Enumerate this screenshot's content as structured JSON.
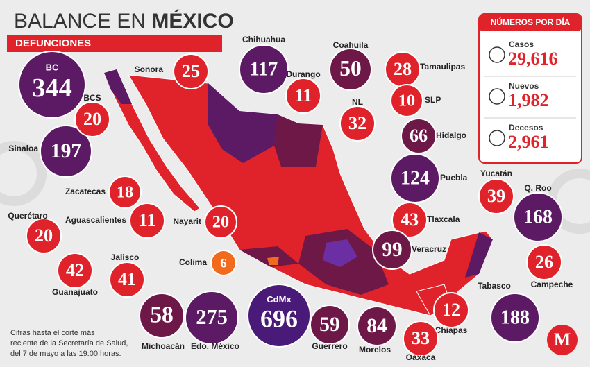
{
  "header": {
    "title_prefix": "BALANCE EN",
    "title_emphasis": "MÉXICO",
    "subtitle": "DEFUNCIONES"
  },
  "states": [
    {
      "name": "BC",
      "value": "344",
      "color": "#5b1a63"
    },
    {
      "name": "Sonora",
      "value": "25",
      "color": "#e0232b"
    },
    {
      "name": "Chihuahua",
      "value": "117",
      "color": "#5b1a63"
    },
    {
      "name": "Durango",
      "value": "11",
      "color": "#e0232b"
    },
    {
      "name": "Coahuila",
      "value": "50",
      "color": "#6e1848"
    },
    {
      "name": "Tamaulipas",
      "value": "28",
      "color": "#e0232b"
    },
    {
      "name": "NL",
      "value": "32",
      "color": "#e0232b"
    },
    {
      "name": "SLP",
      "value": "10",
      "color": "#e0232b"
    },
    {
      "name": "Hidalgo",
      "value": "66",
      "color": "#6e1848"
    },
    {
      "name": "Puebla",
      "value": "124",
      "color": "#5b1a63"
    },
    {
      "name": "Tlaxcala",
      "value": "43",
      "color": "#e0232b"
    },
    {
      "name": "Veracruz",
      "value": "99",
      "color": "#6e1848"
    },
    {
      "name": "Yucatán",
      "value": "39",
      "color": "#e0232b"
    },
    {
      "name": "Q. Roo",
      "value": "168",
      "color": "#5b1a63"
    },
    {
      "name": "Campeche",
      "value": "26",
      "color": "#e0232b"
    },
    {
      "name": "Tabasco",
      "value": "188",
      "color": "#5b1a63"
    },
    {
      "name": "Chiapas",
      "value": "12",
      "color": "#e0232b"
    },
    {
      "name": "Oaxaca",
      "value": "33",
      "color": "#e0232b"
    },
    {
      "name": "Morelos",
      "value": "84",
      "color": "#6e1848"
    },
    {
      "name": "Guerrero",
      "value": "59",
      "color": "#6e1848"
    },
    {
      "name": "CdMx",
      "value": "696",
      "color": "#4a1a78"
    },
    {
      "name": "Edo. México",
      "value": "275",
      "color": "#5b1a63"
    },
    {
      "name": "Michoacán",
      "value": "58",
      "color": "#6e1848"
    },
    {
      "name": "Colima",
      "value": "6",
      "color": "#f26a1b"
    },
    {
      "name": "Jalisco",
      "value": "41",
      "color": "#e0232b"
    },
    {
      "name": "Guanajuato",
      "value": "42",
      "color": "#e0232b"
    },
    {
      "name": "Querétaro",
      "value": "20",
      "color": "#e0232b"
    },
    {
      "name": "Aguascalientes",
      "value": "11",
      "color": "#e0232b"
    },
    {
      "name": "Nayarit",
      "value": "20",
      "color": "#e0232b"
    },
    {
      "name": "Zacatecas",
      "value": "18",
      "color": "#e0232b"
    },
    {
      "name": "Sinaloa",
      "value": "197",
      "color": "#5b1a63"
    },
    {
      "name": "BCS",
      "value": "20",
      "color": "#e0232b"
    }
  ],
  "panel": {
    "title": "NÚMEROS POR DÍA",
    "rows": [
      {
        "label": "Casos",
        "value": "29,616"
      },
      {
        "label": "Nuevos",
        "value": "1,982"
      },
      {
        "label": "Decesos",
        "value": "2,961"
      }
    ]
  },
  "footnote": [
    "Cifras hasta el corte más",
    "reciente de la Secretaría de Salud,",
    "del 7 de mayo a las 19:00 horas."
  ],
  "logo": "M"
}
